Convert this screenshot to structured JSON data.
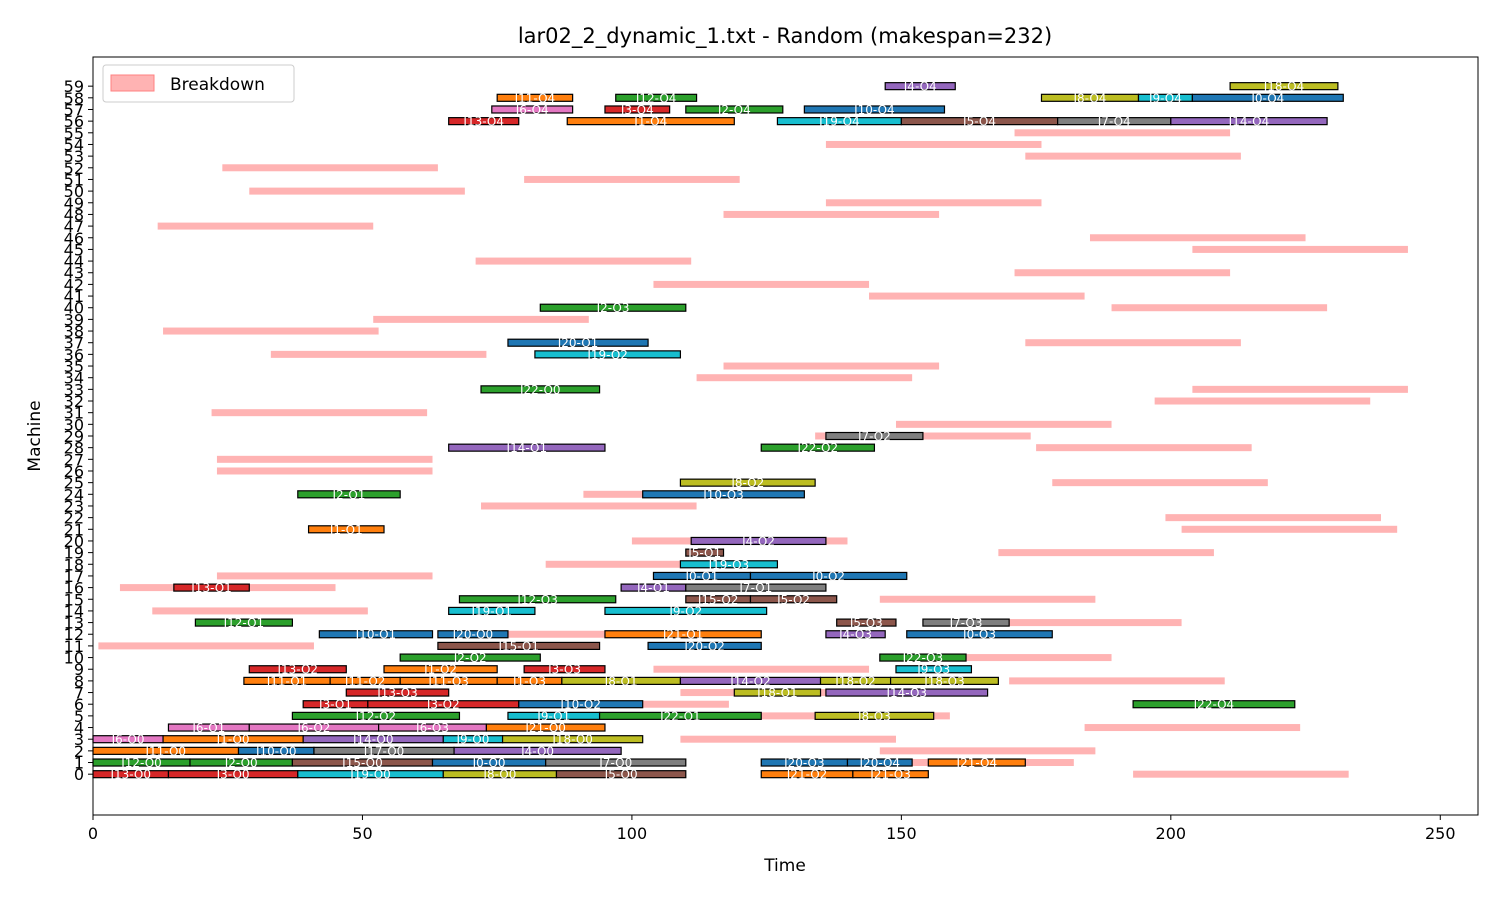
{
  "chart_data": {
    "type": "gantt",
    "title": "lar02_2_dynamic_1.txt - Random (makespan=232)",
    "xlabel": "Time",
    "ylabel": "Machine",
    "xlim": [
      0,
      257
    ],
    "ylim": [
      -3.5,
      61.5
    ],
    "xticks": [
      0,
      50,
      100,
      150,
      200,
      250
    ],
    "yticks": [
      0,
      1,
      2,
      3,
      4,
      5,
      6,
      7,
      8,
      9,
      10,
      11,
      12,
      13,
      14,
      15,
      16,
      17,
      18,
      19,
      20,
      21,
      22,
      23,
      24,
      25,
      26,
      27,
      28,
      29,
      30,
      31,
      32,
      33,
      34,
      35,
      36,
      37,
      38,
      39,
      40,
      41,
      42,
      43,
      44,
      45,
      46,
      47,
      48,
      49,
      50,
      51,
      52,
      53,
      54,
      55,
      56,
      57,
      58,
      59
    ],
    "legend": {
      "label": "Breakdown",
      "position": "top-left",
      "color": "#ffb3b3"
    },
    "colors": {
      "blue": "#1f77b4",
      "orange": "#ff7f0e",
      "green": "#2ca02c",
      "red": "#d62728",
      "purple": "#9467bd",
      "brown": "#8c564b",
      "pink": "#e377c2",
      "gray": "#7f7f7f",
      "olive": "#bcbd22",
      "cyan": "#17becf",
      "breakdown": "#ffb3b3"
    },
    "breakdowns": [
      {
        "m": 0,
        "s": 193,
        "e": 233
      },
      {
        "m": 1,
        "s": 142,
        "e": 182
      },
      {
        "m": 2,
        "s": 146,
        "e": 186
      },
      {
        "m": 3,
        "s": 109,
        "e": 149
      },
      {
        "m": 4,
        "s": 184,
        "e": 224
      },
      {
        "m": 5,
        "s": 119,
        "e": 159
      },
      {
        "m": 6,
        "s": 78,
        "e": 118
      },
      {
        "m": 7,
        "s": 109,
        "e": 149
      },
      {
        "m": 8,
        "s": 170,
        "e": 210
      },
      {
        "m": 9,
        "s": 104,
        "e": 144
      },
      {
        "m": 10,
        "s": 148,
        "e": 189
      },
      {
        "m": 11,
        "s": 1,
        "e": 41
      },
      {
        "m": 12,
        "s": 73,
        "e": 113
      },
      {
        "m": 13,
        "s": 162,
        "e": 202
      },
      {
        "m": 14,
        "s": 11,
        "e": 51
      },
      {
        "m": 15,
        "s": 146,
        "e": 186
      },
      {
        "m": 16,
        "s": 5,
        "e": 45
      },
      {
        "m": 17,
        "s": 23,
        "e": 63
      },
      {
        "m": 18,
        "s": 84,
        "e": 124
      },
      {
        "m": 19,
        "s": 168,
        "e": 208
      },
      {
        "m": 20,
        "s": 100,
        "e": 140
      },
      {
        "m": 21,
        "s": 202,
        "e": 242
      },
      {
        "m": 22,
        "s": 199,
        "e": 239
      },
      {
        "m": 23,
        "s": 72,
        "e": 112
      },
      {
        "m": 24,
        "s": 91,
        "e": 131
      },
      {
        "m": 25,
        "s": 178,
        "e": 218
      },
      {
        "m": 26,
        "s": 23,
        "e": 63
      },
      {
        "m": 27,
        "s": 23,
        "e": 63
      },
      {
        "m": 28,
        "s": 175,
        "e": 215
      },
      {
        "m": 29,
        "s": 134,
        "e": 174
      },
      {
        "m": 30,
        "s": 149,
        "e": 189
      },
      {
        "m": 31,
        "s": 22,
        "e": 62
      },
      {
        "m": 32,
        "s": 197,
        "e": 237
      },
      {
        "m": 33,
        "s": 204,
        "e": 244
      },
      {
        "m": 34,
        "s": 112,
        "e": 152
      },
      {
        "m": 35,
        "s": 117,
        "e": 157
      },
      {
        "m": 36,
        "s": 33,
        "e": 73
      },
      {
        "m": 37,
        "s": 173,
        "e": 213
      },
      {
        "m": 38,
        "s": 13,
        "e": 53
      },
      {
        "m": 39,
        "s": 52,
        "e": 92
      },
      {
        "m": 40,
        "s": 189,
        "e": 229
      },
      {
        "m": 41,
        "s": 144,
        "e": 184
      },
      {
        "m": 42,
        "s": 104,
        "e": 144
      },
      {
        "m": 43,
        "s": 171,
        "e": 211
      },
      {
        "m": 44,
        "s": 71,
        "e": 111
      },
      {
        "m": 45,
        "s": 204,
        "e": 244
      },
      {
        "m": 46,
        "s": 185,
        "e": 225
      },
      {
        "m": 47,
        "s": 12,
        "e": 52
      },
      {
        "m": 48,
        "s": 117,
        "e": 157
      },
      {
        "m": 49,
        "s": 136,
        "e": 176
      },
      {
        "m": 50,
        "s": 29,
        "e": 69
      },
      {
        "m": 51,
        "s": 80,
        "e": 120
      },
      {
        "m": 52,
        "s": 24,
        "e": 64
      },
      {
        "m": 53,
        "s": 173,
        "e": 213
      },
      {
        "m": 54,
        "s": 136,
        "e": 176
      },
      {
        "m": 55,
        "s": 171,
        "e": 211
      }
    ],
    "operations": [
      {
        "m": 0,
        "s": 0,
        "e": 14,
        "label": "J13-O0",
        "color": "red"
      },
      {
        "m": 0,
        "s": 14,
        "e": 38,
        "label": "J3-O0",
        "color": "red"
      },
      {
        "m": 0,
        "s": 38,
        "e": 65,
        "label": "J19-O0",
        "color": "cyan"
      },
      {
        "m": 0,
        "s": 65,
        "e": 86,
        "label": "J8-O0",
        "color": "olive"
      },
      {
        "m": 0,
        "s": 86,
        "e": 110,
        "label": "J5-O0",
        "color": "brown"
      },
      {
        "m": 0,
        "s": 124,
        "e": 141,
        "label": "J21-O2",
        "color": "orange"
      },
      {
        "m": 0,
        "s": 141,
        "e": 155,
        "label": "J21-O3",
        "color": "orange"
      },
      {
        "m": 1,
        "s": 0,
        "e": 18,
        "label": "J12-O0",
        "color": "green"
      },
      {
        "m": 1,
        "s": 18,
        "e": 37,
        "label": "J2-O0",
        "color": "green"
      },
      {
        "m": 1,
        "s": 37,
        "e": 63,
        "label": "J15-O0",
        "color": "brown"
      },
      {
        "m": 1,
        "s": 63,
        "e": 84,
        "label": "J0-O0",
        "color": "blue"
      },
      {
        "m": 1,
        "s": 84,
        "e": 110,
        "label": "J7-O0",
        "color": "gray"
      },
      {
        "m": 1,
        "s": 124,
        "e": 140,
        "label": "J20-O3",
        "color": "blue"
      },
      {
        "m": 1,
        "s": 140,
        "e": 152,
        "label": "J20-O4",
        "color": "blue"
      },
      {
        "m": 1,
        "s": 155,
        "e": 173,
        "label": "J21-O4",
        "color": "orange"
      },
      {
        "m": 2,
        "s": 0,
        "e": 27,
        "label": "J11-O0",
        "color": "orange"
      },
      {
        "m": 2,
        "s": 27,
        "e": 41,
        "label": "J10-O0",
        "color": "blue"
      },
      {
        "m": 2,
        "s": 41,
        "e": 67,
        "label": "J17-O0",
        "color": "gray"
      },
      {
        "m": 2,
        "s": 67,
        "e": 98,
        "label": "J4-O0",
        "color": "purple"
      },
      {
        "m": 3,
        "s": 0,
        "e": 13,
        "label": "J6-O0",
        "color": "pink"
      },
      {
        "m": 3,
        "s": 13,
        "e": 39,
        "label": "J1-O0",
        "color": "orange"
      },
      {
        "m": 3,
        "s": 39,
        "e": 65,
        "label": "J14-O0",
        "color": "purple"
      },
      {
        "m": 3,
        "s": 65,
        "e": 76,
        "label": "J9-O0",
        "color": "cyan"
      },
      {
        "m": 3,
        "s": 76,
        "e": 102,
        "label": "J18-O0",
        "color": "olive"
      },
      {
        "m": 4,
        "s": 14,
        "e": 29,
        "label": "J6-O1",
        "color": "pink"
      },
      {
        "m": 4,
        "s": 29,
        "e": 53,
        "label": "J6-O2",
        "color": "pink"
      },
      {
        "m": 4,
        "s": 53,
        "e": 73,
        "label": "J6-O3",
        "color": "pink"
      },
      {
        "m": 4,
        "s": 73,
        "e": 95,
        "label": "J21-O0",
        "color": "orange"
      },
      {
        "m": 5,
        "s": 37,
        "e": 68,
        "label": "J12-O2",
        "color": "green"
      },
      {
        "m": 5,
        "s": 77,
        "e": 94,
        "label": "J9-O1",
        "color": "cyan"
      },
      {
        "m": 5,
        "s": 94,
        "e": 124,
        "label": "J22-O1",
        "color": "green"
      },
      {
        "m": 5,
        "s": 134,
        "e": 156,
        "label": "J8-O3",
        "color": "olive"
      },
      {
        "m": 6,
        "s": 39,
        "e": 51,
        "label": "J3-O1",
        "color": "red"
      },
      {
        "m": 6,
        "s": 51,
        "e": 79,
        "label": "J3-O2",
        "color": "red"
      },
      {
        "m": 6,
        "s": 79,
        "e": 102,
        "label": "J10-O2",
        "color": "blue"
      },
      {
        "m": 6,
        "s": 193,
        "e": 223,
        "label": "J22-O4",
        "color": "green"
      },
      {
        "m": 7,
        "s": 47,
        "e": 66,
        "label": "J13-O3",
        "color": "red"
      },
      {
        "m": 7,
        "s": 119,
        "e": 135,
        "label": "J18-O1",
        "color": "olive"
      },
      {
        "m": 7,
        "s": 136,
        "e": 166,
        "label": "J14-O3",
        "color": "purple"
      },
      {
        "m": 8,
        "s": 28,
        "e": 44,
        "label": "J11-O1",
        "color": "orange"
      },
      {
        "m": 8,
        "s": 44,
        "e": 57,
        "label": "J11-O2",
        "color": "orange"
      },
      {
        "m": 8,
        "s": 57,
        "e": 75,
        "label": "J11-O3",
        "color": "orange"
      },
      {
        "m": 8,
        "s": 75,
        "e": 87,
        "label": "J1-O3",
        "color": "orange"
      },
      {
        "m": 8,
        "s": 87,
        "e": 109,
        "label": "J8-O1",
        "color": "olive"
      },
      {
        "m": 8,
        "s": 109,
        "e": 135,
        "label": "J14-O2",
        "color": "purple"
      },
      {
        "m": 8,
        "s": 135,
        "e": 148,
        "label": "J18-O2",
        "color": "olive"
      },
      {
        "m": 8,
        "s": 148,
        "e": 168,
        "label": "J18-O3",
        "color": "olive"
      },
      {
        "m": 9,
        "s": 29,
        "e": 47,
        "label": "J13-O2",
        "color": "red"
      },
      {
        "m": 9,
        "s": 54,
        "e": 75,
        "label": "J1-O2",
        "color": "orange"
      },
      {
        "m": 9,
        "s": 80,
        "e": 95,
        "label": "J3-O3",
        "color": "red"
      },
      {
        "m": 9,
        "s": 149,
        "e": 163,
        "label": "J9-O3",
        "color": "cyan"
      },
      {
        "m": 10,
        "s": 57,
        "e": 83,
        "label": "J2-O2",
        "color": "green"
      },
      {
        "m": 10,
        "s": 146,
        "e": 162,
        "label": "J22-O3",
        "color": "green"
      },
      {
        "m": 11,
        "s": 64,
        "e": 94,
        "label": "J15-O1",
        "color": "brown"
      },
      {
        "m": 11,
        "s": 103,
        "e": 124,
        "label": "J20-O2",
        "color": "blue"
      },
      {
        "m": 12,
        "s": 42,
        "e": 63,
        "label": "J10-O1",
        "color": "blue"
      },
      {
        "m": 12,
        "s": 64,
        "e": 77,
        "label": "J20-O0",
        "color": "blue"
      },
      {
        "m": 12,
        "s": 95,
        "e": 124,
        "label": "J21-O1",
        "color": "orange"
      },
      {
        "m": 12,
        "s": 136,
        "e": 147,
        "label": "J4-O3",
        "color": "purple"
      },
      {
        "m": 12,
        "s": 151,
        "e": 178,
        "label": "J0-O3",
        "color": "blue"
      },
      {
        "m": 13,
        "s": 19,
        "e": 37,
        "label": "J12-O1",
        "color": "green"
      },
      {
        "m": 13,
        "s": 138,
        "e": 149,
        "label": "J5-O3",
        "color": "brown"
      },
      {
        "m": 13,
        "s": 154,
        "e": 170,
        "label": "J7-O3",
        "color": "gray"
      },
      {
        "m": 14,
        "s": 66,
        "e": 82,
        "label": "J19-O1",
        "color": "cyan"
      },
      {
        "m": 14,
        "s": 95,
        "e": 125,
        "label": "J9-O2",
        "color": "cyan"
      },
      {
        "m": 15,
        "s": 68,
        "e": 97,
        "label": "J12-O3",
        "color": "green"
      },
      {
        "m": 15,
        "s": 110,
        "e": 122,
        "label": "J15-O2",
        "color": "brown"
      },
      {
        "m": 15,
        "s": 122,
        "e": 138,
        "label": "J5-O2",
        "color": "brown"
      },
      {
        "m": 16,
        "s": 15,
        "e": 29,
        "label": "J13-O1",
        "color": "red"
      },
      {
        "m": 16,
        "s": 98,
        "e": 110,
        "label": "J4-O1",
        "color": "purple"
      },
      {
        "m": 16,
        "s": 110,
        "e": 136,
        "label": "J7-O1",
        "color": "gray"
      },
      {
        "m": 17,
        "s": 104,
        "e": 122,
        "label": "J0-O1",
        "color": "blue"
      },
      {
        "m": 17,
        "s": 122,
        "e": 151,
        "label": "J0-O2",
        "color": "blue"
      },
      {
        "m": 18,
        "s": 109,
        "e": 127,
        "label": "J19-O3",
        "color": "cyan"
      },
      {
        "m": 19,
        "s": 110,
        "e": 117,
        "label": "J5-O1",
        "color": "brown"
      },
      {
        "m": 20,
        "s": 111,
        "e": 136,
        "label": "J4-O2",
        "color": "purple"
      },
      {
        "m": 21,
        "s": 40,
        "e": 54,
        "label": "J1-O1",
        "color": "orange"
      },
      {
        "m": 24,
        "s": 38,
        "e": 57,
        "label": "J2-O1",
        "color": "green"
      },
      {
        "m": 24,
        "s": 102,
        "e": 132,
        "label": "J10-O3",
        "color": "blue"
      },
      {
        "m": 25,
        "s": 109,
        "e": 134,
        "label": "J8-O2",
        "color": "olive"
      },
      {
        "m": 28,
        "s": 66,
        "e": 95,
        "label": "J14-O1",
        "color": "purple"
      },
      {
        "m": 28,
        "s": 124,
        "e": 145,
        "label": "J22-O2",
        "color": "green"
      },
      {
        "m": 29,
        "s": 136,
        "e": 154,
        "label": "J7-O2",
        "color": "gray"
      },
      {
        "m": 33,
        "s": 72,
        "e": 94,
        "label": "J22-O0",
        "color": "green"
      },
      {
        "m": 36,
        "s": 82,
        "e": 109,
        "label": "J19-O2",
        "color": "cyan"
      },
      {
        "m": 37,
        "s": 77,
        "e": 103,
        "label": "J20-O1",
        "color": "blue"
      },
      {
        "m": 40,
        "s": 83,
        "e": 110,
        "label": "J2-O3",
        "color": "green"
      },
      {
        "m": 56,
        "s": 66,
        "e": 79,
        "label": "J13-O4",
        "color": "red"
      },
      {
        "m": 56,
        "s": 88,
        "e": 119,
        "label": "J1-O4",
        "color": "orange"
      },
      {
        "m": 56,
        "s": 127,
        "e": 150,
        "label": "J19-O4",
        "color": "cyan"
      },
      {
        "m": 56,
        "s": 150,
        "e": 179,
        "label": "J5-O4",
        "color": "brown"
      },
      {
        "m": 56,
        "s": 179,
        "e": 200,
        "label": "J7-O4",
        "color": "gray"
      },
      {
        "m": 56,
        "s": 200,
        "e": 229,
        "label": "J14-O4",
        "color": "purple"
      },
      {
        "m": 57,
        "s": 74,
        "e": 89,
        "label": "J6-O4",
        "color": "pink"
      },
      {
        "m": 57,
        "s": 95,
        "e": 107,
        "label": "J3-O4",
        "color": "red"
      },
      {
        "m": 57,
        "s": 110,
        "e": 128,
        "label": "J2-O4",
        "color": "green"
      },
      {
        "m": 57,
        "s": 132,
        "e": 158,
        "label": "J10-O4",
        "color": "blue"
      },
      {
        "m": 58,
        "s": 75,
        "e": 89,
        "label": "J11-O4",
        "color": "orange"
      },
      {
        "m": 58,
        "s": 97,
        "e": 112,
        "label": "J12-O4",
        "color": "green"
      },
      {
        "m": 58,
        "s": 176,
        "e": 194,
        "label": "J8-O4",
        "color": "olive"
      },
      {
        "m": 58,
        "s": 194,
        "e": 204,
        "label": "J9-O4",
        "color": "cyan"
      },
      {
        "m": 58,
        "s": 204,
        "e": 232,
        "label": "J0-O4",
        "color": "blue"
      },
      {
        "m": 59,
        "s": 147,
        "e": 160,
        "label": "J4-O4",
        "color": "purple"
      },
      {
        "m": 59,
        "s": 211,
        "e": 231,
        "label": "J18-O4",
        "color": "olive"
      }
    ]
  }
}
